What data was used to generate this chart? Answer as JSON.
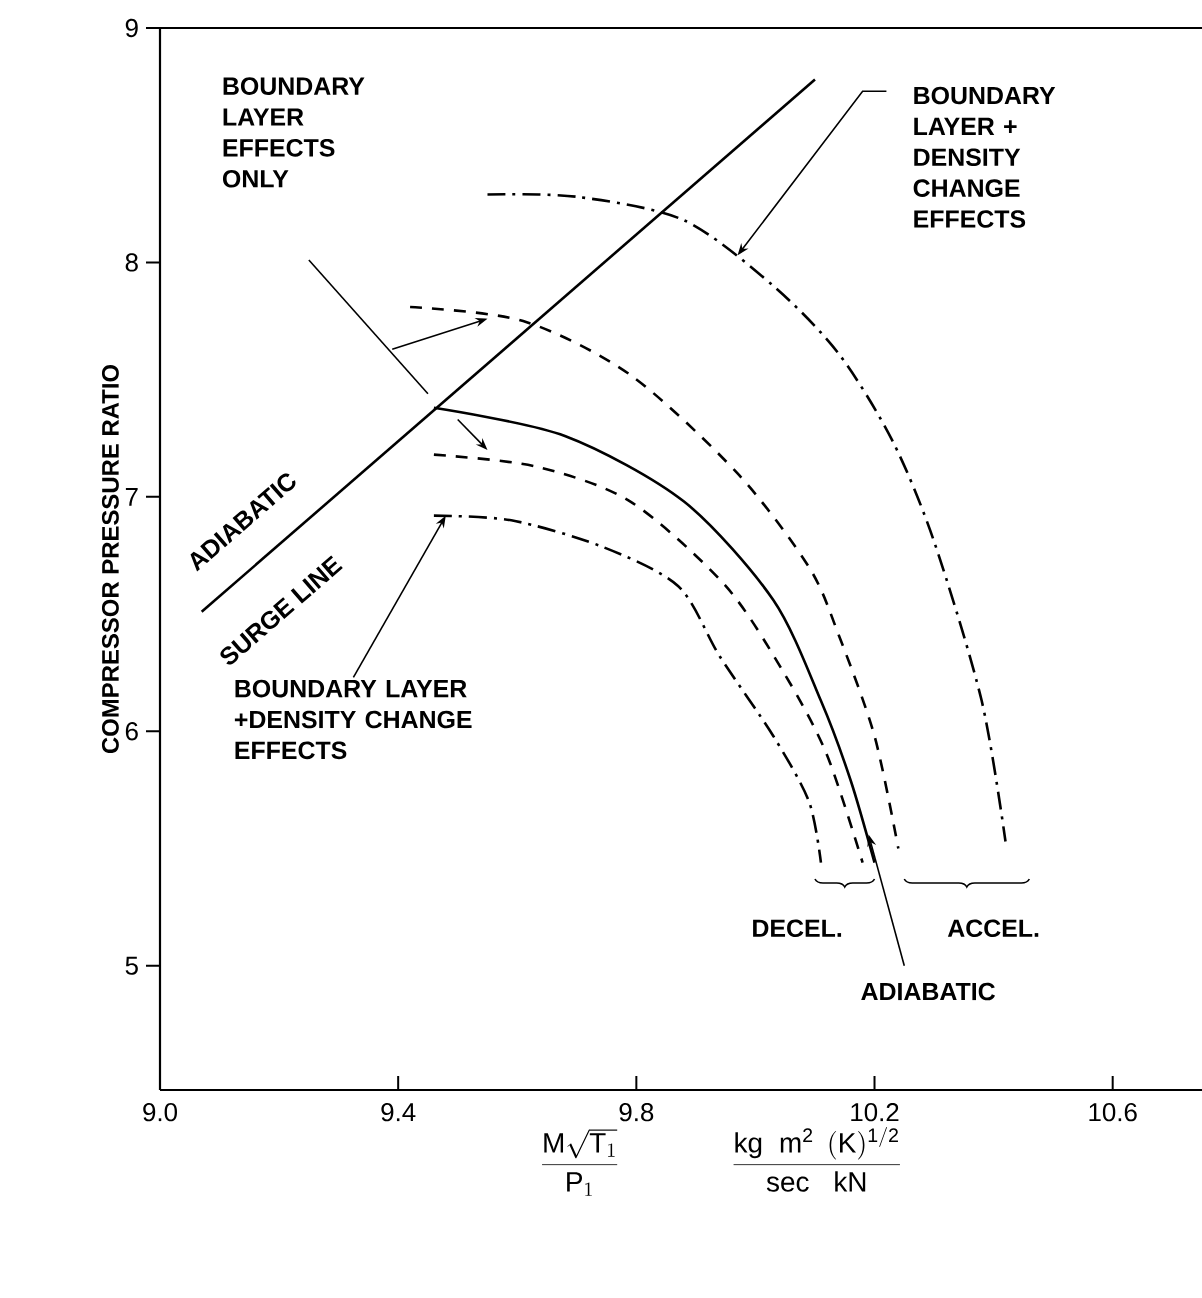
{
  "chart_data": {
    "type": "line",
    "xlabel": "\\frac{\\mathrm{M}\\sqrt{\\mathrm{T}_1}}{\\mathrm{P}_1}\\qquad\\qquad\\frac{\\mathrm{kg\\;\\;m^2\\;\\,(K)^{1/2}}}{\\mathrm{sec\\;\\;\\;kN}}",
    "ylabel": "COMPRESSOR   PRESSURE   RATIO",
    "xlim": [
      9.0,
      10.75
    ],
    "ylim": [
      4.47,
      9.0
    ],
    "xticks": [
      {
        "value": 9.0,
        "label": "9.0"
      },
      9.4,
      9.8,
      10.2,
      10.6
    ],
    "yticks": [
      5,
      6,
      7,
      8,
      9
    ],
    "series": [
      {
        "color": "#000000",
        "line_style": "solid",
        "x": [
          9.07,
          10.1
        ],
        "values": [
          6.51,
          8.78
        ]
      },
      {
        "color": "#000000",
        "line_style": "solid",
        "x": [
          9.46,
          9.68,
          9.88,
          10.03,
          10.11,
          10.16,
          10.2
        ],
        "values": [
          7.38,
          7.26,
          6.98,
          6.56,
          6.13,
          5.79,
          5.44
        ]
      },
      {
        "color": "#000000",
        "line_style": "dashed",
        "x": [
          9.42,
          9.61,
          9.79,
          9.97,
          10.09,
          10.14,
          10.2,
          10.24
        ],
        "values": [
          7.81,
          7.75,
          7.52,
          7.1,
          6.7,
          6.41,
          5.98,
          5.5
        ]
      },
      {
        "color": "#000000",
        "line_style": "dashed",
        "x": [
          9.46,
          9.63,
          9.79,
          9.95,
          10.05,
          10.12,
          10.18
        ],
        "values": [
          7.18,
          7.13,
          6.98,
          6.62,
          6.24,
          5.9,
          5.44
        ]
      },
      {
        "color": "#000000",
        "line_style": "dashdot",
        "x": [
          9.55,
          9.7,
          9.88,
          10.03,
          10.14,
          10.23,
          10.3,
          10.38,
          10.42
        ],
        "values": [
          8.29,
          8.28,
          8.18,
          7.9,
          7.61,
          7.24,
          6.81,
          6.13,
          5.53
        ]
      },
      {
        "color": "#000000",
        "line_style": "dashdot",
        "x": [
          9.46,
          9.59,
          9.74,
          9.87,
          9.94,
          10.03,
          10.09,
          10.11
        ],
        "values": [
          6.92,
          6.9,
          6.79,
          6.62,
          6.32,
          5.98,
          5.7,
          5.44
        ]
      }
    ],
    "annotations": [
      "BOUNDARY LAYER EFFECTS ONLY",
      {
        "text": "BOUNDARY LAYER + DENSITY CHANGE EFFECTS",
        "x": 9.97,
        "y": 8.03
      },
      "ADIABATIC",
      "SURGE LINE",
      {
        "text": "BOUNDARY LAYER +DENSITY CHANGE EFFECTS",
        "x": 9.48,
        "y": 6.92
      },
      "DECEL.",
      "ACCEL.",
      {
        "text": "ADIABATIC",
        "x": 10.19,
        "y": 5.56
      }
    ]
  }
}
